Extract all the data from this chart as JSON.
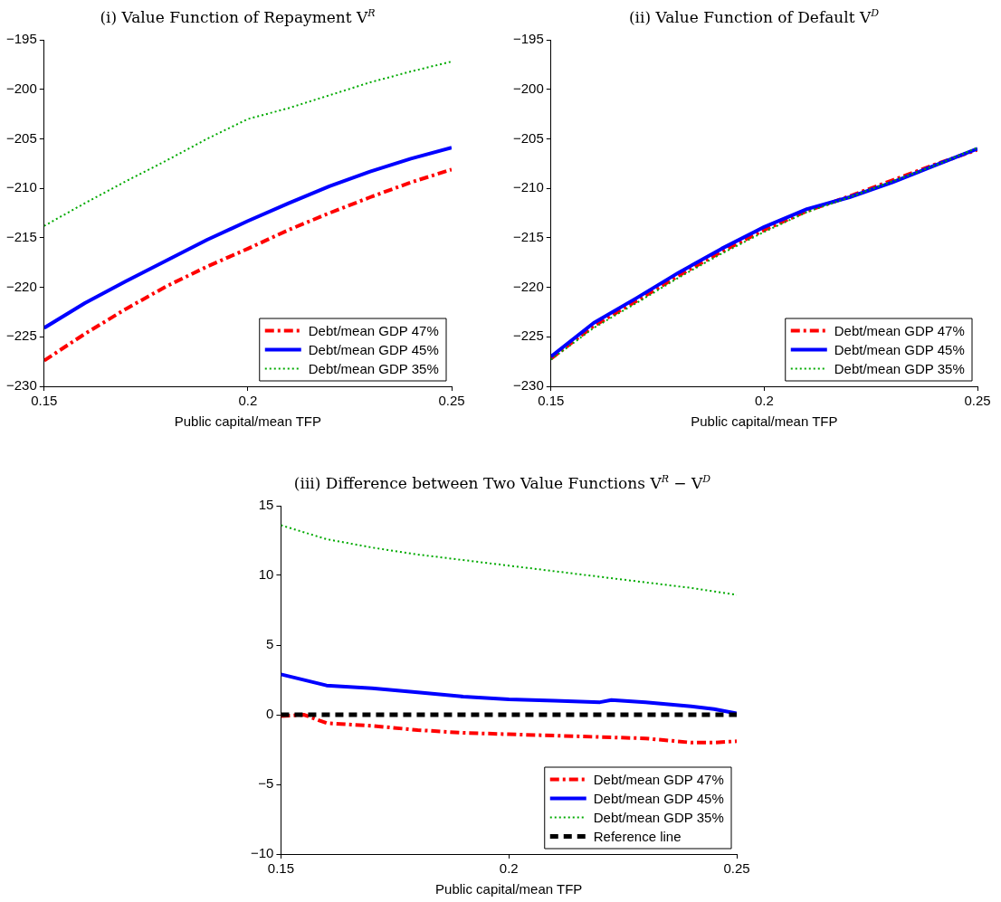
{
  "chart_data": [
    {
      "type": "line",
      "title": "(i) Value Function of Repayment V$^{R}$",
      "xlabel": "Public capital/mean TFP",
      "x": [
        0.15,
        0.16,
        0.17,
        0.18,
        0.19,
        0.2,
        0.21,
        0.22,
        0.23,
        0.24,
        0.25
      ],
      "xlim": [
        0.15,
        0.25
      ],
      "xticks": [
        0.15,
        0.2,
        0.25
      ],
      "ylim": [
        -230,
        -195
      ],
      "yticks": [
        -230,
        -225,
        -220,
        -215,
        -210,
        -205,
        -200,
        -195
      ],
      "legend": "bottom right",
      "series": [
        {
          "name": "Debt/mean GDP 47%",
          "color": "#ff0000",
          "line_style": "dashdot",
          "values": [
            -227.4,
            -224.7,
            -222.2,
            -219.9,
            -217.9,
            -216.1,
            -214.2,
            -212.5,
            -210.9,
            -209.4,
            -208.1
          ]
        },
        {
          "name": "Debt/mean GDP 45%",
          "color": "#0000ff",
          "line_style": "solid",
          "values": [
            -224.1,
            -221.6,
            -219.4,
            -217.3,
            -215.2,
            -213.3,
            -211.5,
            -209.8,
            -208.3,
            -207.0,
            -205.9
          ]
        },
        {
          "name": "Debt/mean GDP 35%",
          "color": "#00aa00",
          "line_style": "dotted",
          "values": [
            -213.8,
            -211.5,
            -209.3,
            -207.2,
            -205.0,
            -203.0,
            -201.9,
            -200.6,
            -199.3,
            -198.2,
            -197.2
          ]
        }
      ]
    },
    {
      "type": "line",
      "title": "(ii) Value Function of Default V$^{D}$",
      "xlabel": "Public capital/mean TFP",
      "x": [
        0.15,
        0.16,
        0.17,
        0.18,
        0.19,
        0.2,
        0.21,
        0.22,
        0.23,
        0.24,
        0.25
      ],
      "xlim": [
        0.15,
        0.25
      ],
      "xticks": [
        0.15,
        0.2,
        0.25
      ],
      "ylim": [
        -230,
        -195
      ],
      "yticks": [
        -230,
        -225,
        -220,
        -215,
        -210,
        -205,
        -200,
        -195
      ],
      "legend": "bottom right",
      "series": [
        {
          "name": "Debt/mean GDP 47%",
          "color": "#ff0000",
          "line_style": "dashdot",
          "values": [
            -227.2,
            -223.9,
            -221.4,
            -218.8,
            -216.4,
            -214.2,
            -212.3,
            -210.8,
            -209.2,
            -207.6,
            -206.1
          ]
        },
        {
          "name": "Debt/mean GDP 45%",
          "color": "#0000ff",
          "line_style": "solid",
          "values": [
            -227.0,
            -223.6,
            -221.1,
            -218.5,
            -216.1,
            -213.9,
            -212.1,
            -210.9,
            -209.4,
            -207.7,
            -206.0
          ]
        },
        {
          "name": "Debt/mean GDP 35%",
          "color": "#00aa00",
          "line_style": "dotted",
          "values": [
            -227.3,
            -224.1,
            -221.6,
            -219.0,
            -216.6,
            -214.4,
            -212.4,
            -210.9,
            -209.3,
            -207.7,
            -205.9
          ]
        }
      ]
    },
    {
      "type": "line",
      "title": "(iii) Difference between Two Value Functions V$^{R}$ − V$^{D}$",
      "xlabel": "Public capital/mean TFP",
      "xlim": [
        0.15,
        0.25
      ],
      "xticks": [
        0.15,
        0.2,
        0.25
      ],
      "ylim": [
        -10,
        15
      ],
      "yticks": [
        -10,
        -5,
        0,
        5,
        10,
        15
      ],
      "legend": "bottom right",
      "series": [
        {
          "name": "Debt/mean GDP 47%",
          "color": "#ff0000",
          "line_style": "dashdot",
          "x": [
            0.15,
            0.155,
            0.16,
            0.17,
            0.18,
            0.19,
            0.2,
            0.21,
            0.22,
            0.23,
            0.24,
            0.245,
            0.25
          ],
          "values": [
            -0.1,
            0.0,
            -0.6,
            -0.8,
            -1.1,
            -1.3,
            -1.4,
            -1.5,
            -1.6,
            -1.7,
            -2.0,
            -2.0,
            -1.9
          ]
        },
        {
          "name": "Debt/mean GDP 45%",
          "color": "#0000ff",
          "line_style": "solid",
          "x": [
            0.15,
            0.16,
            0.17,
            0.18,
            0.19,
            0.2,
            0.21,
            0.22,
            0.2225,
            0.23,
            0.24,
            0.245,
            0.25
          ],
          "values": [
            2.9,
            2.1,
            1.9,
            1.6,
            1.3,
            1.1,
            1.0,
            0.9,
            1.05,
            0.9,
            0.6,
            0.4,
            0.1
          ]
        },
        {
          "name": "Debt/mean GDP 35%",
          "color": "#00aa00",
          "line_style": "dotted",
          "x": [
            0.15,
            0.16,
            0.17,
            0.18,
            0.19,
            0.2,
            0.21,
            0.22,
            0.23,
            0.24,
            0.25
          ],
          "values": [
            13.6,
            12.6,
            12.0,
            11.5,
            11.1,
            10.7,
            10.3,
            9.9,
            9.5,
            9.1,
            8.6
          ]
        },
        {
          "name": "Reference line",
          "color": "#000000",
          "line_style": "dashed",
          "x": [
            0.15,
            0.25
          ],
          "values": [
            0,
            0
          ]
        }
      ]
    }
  ]
}
